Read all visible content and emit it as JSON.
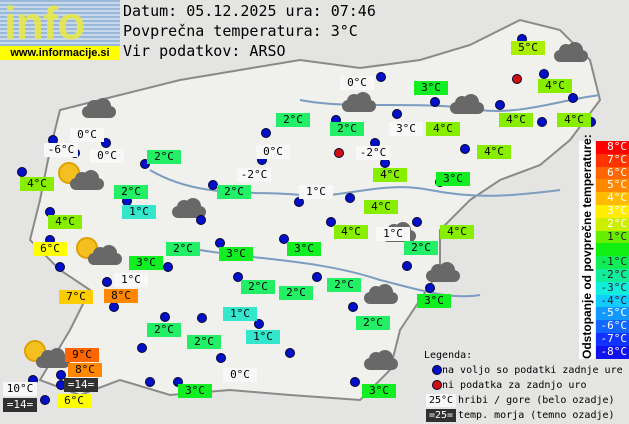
{
  "header": {
    "logo_text": "info",
    "logo_url": "www.informacije.si",
    "date_line": "Datum: 05.12.2025 ura: 07:46",
    "avg_temp_line": "Povprečna temperatura: 3°C",
    "source_line": "Vir podatkov: ARSO"
  },
  "colors": {
    "white": "#f8f8f8",
    "dark": "#303030",
    "t1": "#33e6cc",
    "t2": "#22ee66",
    "t3": "#11ee22",
    "t4": "#88ee00",
    "t5": "#aaee00",
    "t6": "#ffff00",
    "t7": "#ffcc00",
    "t8": "#ff8800",
    "t9": "#ff6600",
    "dot_ok": "#0010c8",
    "dot_missing": "#d01010"
  },
  "stations": [
    {
      "t": "5°C",
      "c": "t5"
    },
    {
      "t": "0°C",
      "c": "white"
    },
    {
      "t": "3°C",
      "c": "t3"
    },
    {
      "t": "4°C",
      "c": "t4"
    },
    {
      "t": "2°C",
      "c": "t2"
    },
    {
      "t": "2°C",
      "c": "t2"
    },
    {
      "t": "3°C",
      "c": "white"
    },
    {
      "t": "4°C",
      "c": "t4"
    },
    {
      "t": "4°C",
      "c": "t4"
    },
    {
      "t": "4°C",
      "c": "t4"
    },
    {
      "t": "0°C",
      "c": "white"
    },
    {
      "t": "-6°C",
      "c": "white"
    },
    {
      "t": "0°C",
      "c": "white"
    },
    {
      "t": "2°C",
      "c": "t2"
    },
    {
      "t": "0°C",
      "c": "white"
    },
    {
      "t": "-2°C",
      "c": "white"
    },
    {
      "t": "4°C",
      "c": "t4"
    },
    {
      "t": "4°C",
      "c": "t4"
    },
    {
      "t": "-2°C",
      "c": "white"
    },
    {
      "t": "4°C",
      "c": "t4"
    },
    {
      "t": "3°C",
      "c": "t3"
    },
    {
      "t": "2°C",
      "c": "t2"
    },
    {
      "t": "2°C",
      "c": "t2"
    },
    {
      "t": "1°C",
      "c": "white"
    },
    {
      "t": "1°C",
      "c": "t1"
    },
    {
      "t": "4°C",
      "c": "t4"
    },
    {
      "t": "4°C",
      "c": "t4"
    },
    {
      "t": "4°C",
      "c": "t4"
    },
    {
      "t": "1°C",
      "c": "white"
    },
    {
      "t": "4°C",
      "c": "t4"
    },
    {
      "t": "6°C",
      "c": "t6"
    },
    {
      "t": "2°C",
      "c": "t2"
    },
    {
      "t": "3°C",
      "c": "t3"
    },
    {
      "t": "3°C",
      "c": "t3"
    },
    {
      "t": "2°C",
      "c": "t2"
    },
    {
      "t": "3°C",
      "c": "t3"
    },
    {
      "t": "1°C",
      "c": "white"
    },
    {
      "t": "7°C",
      "c": "t7"
    },
    {
      "t": "8°C",
      "c": "t8"
    },
    {
      "t": "2°C",
      "c": "t2"
    },
    {
      "t": "2°C",
      "c": "t2"
    },
    {
      "t": "2°C",
      "c": "t2"
    },
    {
      "t": "3°C",
      "c": "t3"
    },
    {
      "t": "1°C",
      "c": "t1"
    },
    {
      "t": "2°C",
      "c": "t2"
    },
    {
      "t": "2°C",
      "c": "t2"
    },
    {
      "t": "2°C",
      "c": "t2"
    },
    {
      "t": "1°C",
      "c": "t1"
    },
    {
      "t": "9°C",
      "c": "t9"
    },
    {
      "t": "8°C",
      "c": "t8"
    },
    {
      "t": "=14=",
      "c": "dark"
    },
    {
      "t": "0°C",
      "c": "white"
    },
    {
      "t": "10°C",
      "c": "white"
    },
    {
      "t": "=14=",
      "c": "dark"
    },
    {
      "t": "6°C",
      "c": "t6"
    },
    {
      "t": "3°C",
      "c": "t3"
    },
    {
      "t": "3°C",
      "c": "t3"
    }
  ],
  "scale": {
    "title": "Odstopanje od povprečne temperature:",
    "steps": [
      {
        "t": "8°C",
        "bg": "#ff0000"
      },
      {
        "t": "7°C",
        "bg": "#ff3300"
      },
      {
        "t": "6°C",
        "bg": "#ff6600"
      },
      {
        "t": "5°C",
        "bg": "#ff8800"
      },
      {
        "t": "4°C",
        "bg": "#ffbb00"
      },
      {
        "t": "3°C",
        "bg": "#ffee00"
      },
      {
        "t": "2°C",
        "bg": "#ccee00"
      },
      {
        "t": "1°C",
        "bg": "#66ee00"
      },
      {
        "t": "",
        "bg": "#11ee11"
      },
      {
        "t": "-1°C",
        "bg": "#11ee55"
      },
      {
        "t": "-2°C",
        "bg": "#11ee99"
      },
      {
        "t": "-3°C",
        "bg": "#11eedd"
      },
      {
        "t": "-4°C",
        "bg": "#11ccff"
      },
      {
        "t": "-5°C",
        "bg": "#1199ff"
      },
      {
        "t": "-6°C",
        "bg": "#1166ff"
      },
      {
        "t": "-7°C",
        "bg": "#1133ff"
      },
      {
        "t": "-8°C",
        "bg": "#1111ee"
      }
    ]
  },
  "legend": {
    "title": "Legenda:",
    "dot_ok": "na voljo so podatki zadnje ure",
    "dot_missing": "ni podatka za zadnjo uro",
    "mountain_sample": "25°C",
    "mountain": "hribi / gore (belo ozadje)",
    "sea_sample": "=25=",
    "sea": "temp. morja (temno ozadje)"
  }
}
